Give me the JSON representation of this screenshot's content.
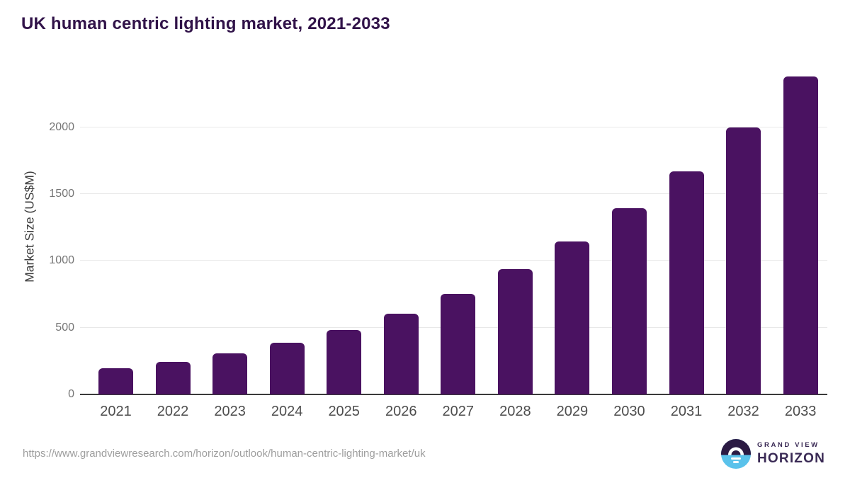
{
  "page": {
    "title": "UK human centric lighting market, 2021-2033"
  },
  "chart_data": {
    "type": "bar",
    "title": "UK human centric lighting market, 2021-2033",
    "categories": [
      "2021",
      "2022",
      "2023",
      "2024",
      "2025",
      "2026",
      "2027",
      "2028",
      "2029",
      "2030",
      "2031",
      "2032",
      "2033"
    ],
    "values": [
      195,
      246,
      308,
      388,
      483,
      602,
      751,
      938,
      1144,
      1394,
      1672,
      2000,
      2380
    ],
    "xlabel": "",
    "ylabel": "Market Size (US$M)",
    "ylim": [
      0,
      2450
    ],
    "yticks": [
      0,
      500,
      1000,
      1500,
      2000
    ],
    "legend": "none",
    "grid": "horizontal",
    "bar_color": "#4a1261"
  },
  "footer": {
    "source_url": "https://www.grandviewresearch.com/horizon/outlook/human-centric-lighting-market/uk",
    "logo": {
      "brand_top": "GRAND VIEW",
      "brand_bottom": "HORIZON"
    }
  },
  "colors": {
    "title_text": "#311349",
    "bar": "#4a1261",
    "gridline": "#e8e8e8",
    "axis_line": "#3a3a3a",
    "y_tick_text": "#757575",
    "x_tick_text": "#4d4d4d",
    "source_url_text": "#9e9e9e",
    "logo_purple": "#2b1a43",
    "logo_blue": "#5ac2eb",
    "logo_text": "#3a2a55"
  }
}
